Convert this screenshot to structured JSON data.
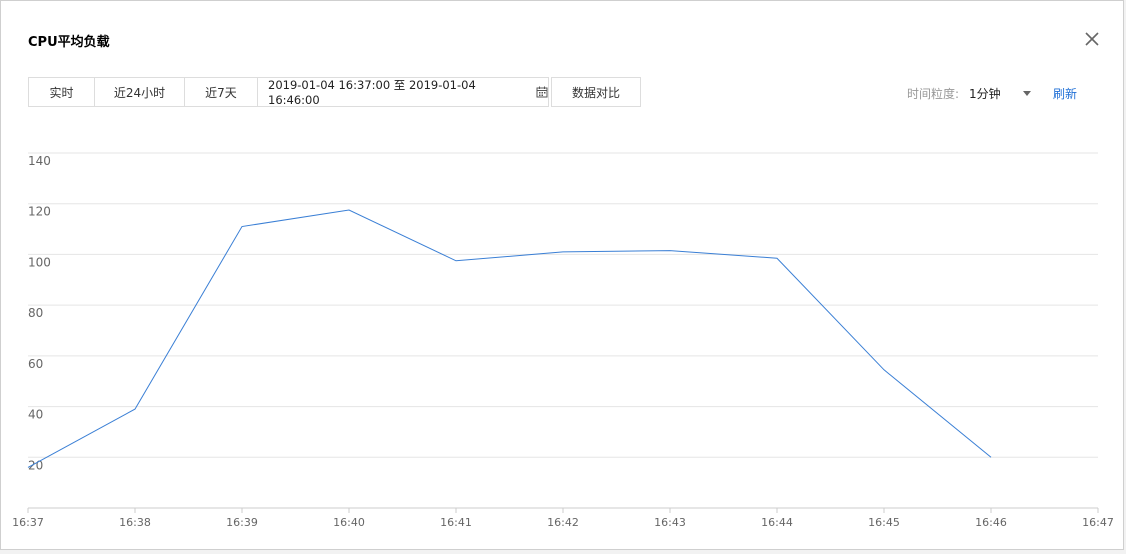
{
  "dialog": {
    "title": "CPU平均负载"
  },
  "toolbar": {
    "realtime_label": "实时",
    "last24h_label": "近24小时",
    "last7d_label": "近7天",
    "range_text": "2019-01-04 16:37:00 至 2019-01-04 16:46:00",
    "compare_label": "数据对比"
  },
  "granularity": {
    "label": "时间粒度:",
    "selected": "1分钟"
  },
  "refresh_label": "刷新",
  "colors": {
    "line": "#3a7fd5",
    "grid": "#e5e5e5",
    "link": "#1f6fd6"
  },
  "chart_data": {
    "type": "line",
    "x": [
      "16:37",
      "16:38",
      "16:39",
      "16:40",
      "16:41",
      "16:42",
      "16:43",
      "16:44",
      "16:45",
      "16:46",
      "16:47"
    ],
    "series": [
      {
        "values": [
          16,
          39,
          111,
          117.5,
          97.5,
          101,
          101.5,
          98.5,
          54.5,
          20,
          null
        ]
      }
    ],
    "yticks": [
      20,
      40,
      60,
      80,
      100,
      120,
      140
    ],
    "ylim": [
      0,
      140
    ],
    "grid": true,
    "legend": "none"
  }
}
